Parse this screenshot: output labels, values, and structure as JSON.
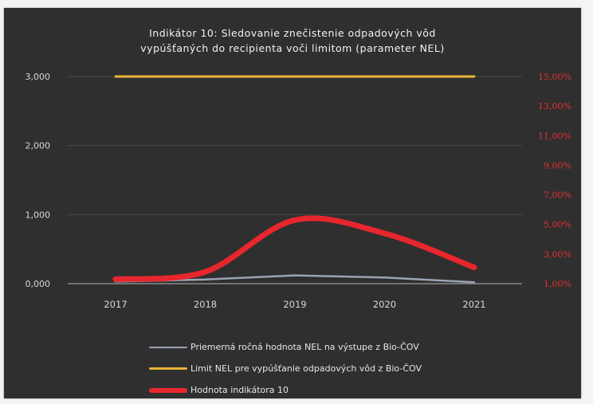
{
  "chart_data": {
    "type": "line",
    "title_line1": "Indikátor 10: Sledovanie znečistenie odpadových vôd",
    "title_line2": "vypúšťaných do recipienta voči limitom (parameter NEL)",
    "categories": [
      "2017",
      "2018",
      "2019",
      "2020",
      "2021"
    ],
    "y_left": {
      "ticks": [
        "0,000",
        "1,000",
        "2,000",
        "3,000"
      ],
      "ylim": [
        0,
        3
      ]
    },
    "y_right": {
      "ticks": [
        "1,00%",
        "3,00%",
        "5,00%",
        "7,00%",
        "9,00%",
        "11,00%",
        "13,00%",
        "15,00%"
      ],
      "ylim": [
        1,
        15
      ]
    },
    "series": [
      {
        "name": "Priemerná ročná hodnota NEL na výstupe z Bio-ČOV",
        "axis": "left",
        "color": "#9aa3b2",
        "values": [
          0.03,
          0.06,
          0.12,
          0.09,
          0.02
        ]
      },
      {
        "name": "Limit NEL pre vypúšťanie odpadových vôd z Bio-ČOV",
        "axis": "left",
        "color": "#e8b43a",
        "values": [
          3.0,
          3.0,
          3.0,
          3.0,
          3.0
        ]
      },
      {
        "name": "Hodnota indikátora 10",
        "axis": "right",
        "color": "#e8262d",
        "values": [
          1.3,
          1.8,
          5.3,
          4.4,
          2.1
        ]
      }
    ],
    "grid": true,
    "legend_position": "bottom"
  }
}
